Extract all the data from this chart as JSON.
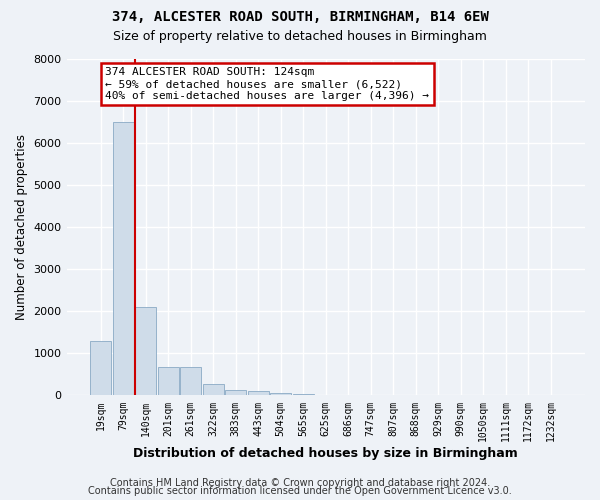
{
  "title": "374, ALCESTER ROAD SOUTH, BIRMINGHAM, B14 6EW",
  "subtitle": "Size of property relative to detached houses in Birmingham",
  "xlabel": "Distribution of detached houses by size in Birmingham",
  "ylabel": "Number of detached properties",
  "footer1": "Contains HM Land Registry data © Crown copyright and database right 2024.",
  "footer2": "Contains public sector information licensed under the Open Government Licence v3.0.",
  "bar_color": "#cfdce9",
  "bar_edge_color": "#8aaac5",
  "bin_labels": [
    "19sqm",
    "79sqm",
    "140sqm",
    "201sqm",
    "261sqm",
    "322sqm",
    "383sqm",
    "443sqm",
    "504sqm",
    "565sqm",
    "625sqm",
    "686sqm",
    "747sqm",
    "807sqm",
    "868sqm",
    "929sqm",
    "990sqm",
    "1050sqm",
    "1111sqm",
    "1172sqm",
    "1232sqm"
  ],
  "bar_heights": [
    1300,
    6500,
    2100,
    680,
    680,
    280,
    140,
    110,
    55,
    28,
    12,
    6,
    3,
    2,
    1,
    0,
    0,
    0,
    0,
    0,
    0
  ],
  "redline_x": 1.5,
  "annotation_text": "374 ALCESTER ROAD SOUTH: 124sqm\n← 59% of detached houses are smaller (6,522)\n40% of semi-detached houses are larger (4,396) →",
  "ylim": [
    0,
    8000
  ],
  "yticks": [
    0,
    1000,
    2000,
    3000,
    4000,
    5000,
    6000,
    7000,
    8000
  ],
  "background_color": "#eef2f7",
  "grid_color": "#ffffff",
  "annotation_box_facecolor": "#ffffff",
  "annotation_border_color": "#cc0000",
  "redline_color": "#cc0000",
  "title_fontsize": 10,
  "subtitle_fontsize": 9,
  "ylabel_fontsize": 8.5,
  "xlabel_fontsize": 9,
  "tick_fontsize": 7,
  "annotation_fontsize": 8,
  "footer_fontsize": 7
}
